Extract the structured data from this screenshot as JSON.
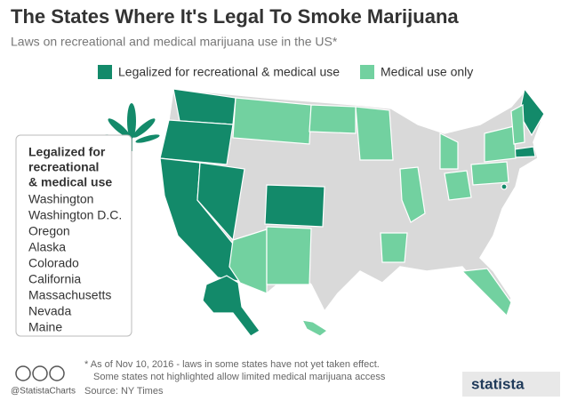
{
  "header": {
    "title": "The States Where It's Legal To Smoke Marijuana",
    "subtitle": "Laws on recreational and medical marijuana use in the US*"
  },
  "legend": [
    "Legalized for recreational & medical use",
    "Medical use only"
  ],
  "box": {
    "title": [
      "Legalized for",
      "recreational",
      "& medical use"
    ],
    "states": [
      "Washington",
      "Washington D.C.",
      "Oregon",
      "Alaska",
      "Colorado",
      "California",
      "Massachusetts",
      "Nevada",
      "Maine"
    ]
  },
  "footer": {
    "notes": [
      "* As  of Nov 10, 2016 - laws in some states have not yet taken effect.",
      "Some states not highlighted allow limited medical marijuana access"
    ],
    "source": "Source: NY Times",
    "handle": "@StatistaCharts",
    "logo": "statista"
  }
}
